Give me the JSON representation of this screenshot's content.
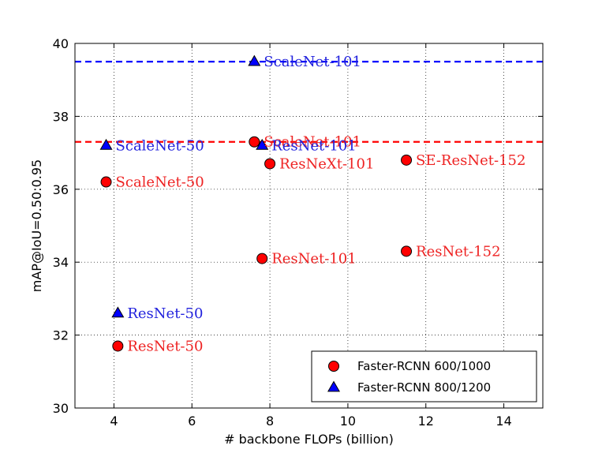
{
  "chart_data": {
    "type": "scatter",
    "title": "",
    "xlabel": "# backbone FLOPs (billion)",
    "ylabel": "mAP@IoU=0.50:0.95",
    "xlim": [
      3,
      15
    ],
    "ylim": [
      30,
      40
    ],
    "xticks": [
      4,
      6,
      8,
      10,
      12,
      14
    ],
    "yticks": [
      30,
      32,
      34,
      36,
      38,
      40
    ],
    "grid": true,
    "legend_position": "lower-right",
    "series": [
      {
        "name": "Faster-RCNN 600/1000",
        "marker": "circle",
        "color": "#ff0000",
        "label_color": "#ee2222",
        "points": [
          {
            "label": "ScaleNet-50",
            "x": 3.8,
            "y": 36.2
          },
          {
            "label": "ResNet-50",
            "x": 4.1,
            "y": 31.7
          },
          {
            "label": "ScaleNet-101",
            "x": 7.6,
            "y": 37.3
          },
          {
            "label": "ResNeXt-101",
            "x": 8.0,
            "y": 36.7
          },
          {
            "label": "ResNet-101",
            "x": 7.8,
            "y": 34.1
          },
          {
            "label": "SE-ResNet-152",
            "x": 11.5,
            "y": 36.8
          },
          {
            "label": "ResNet-152",
            "x": 11.5,
            "y": 34.3
          }
        ],
        "hline": 37.3
      },
      {
        "name": "Faster-RCNN 800/1200",
        "marker": "triangle",
        "color": "#0000ff",
        "label_color": "#2222dd",
        "points": [
          {
            "label": "ScaleNet-50",
            "x": 3.8,
            "y": 37.2
          },
          {
            "label": "ResNet-50",
            "x": 4.1,
            "y": 32.6
          },
          {
            "label": "ScaleNet-101",
            "x": 7.6,
            "y": 39.5
          },
          {
            "label": "ResNet-101",
            "x": 7.8,
            "y": 37.2
          }
        ],
        "hline": 39.5
      }
    ]
  }
}
